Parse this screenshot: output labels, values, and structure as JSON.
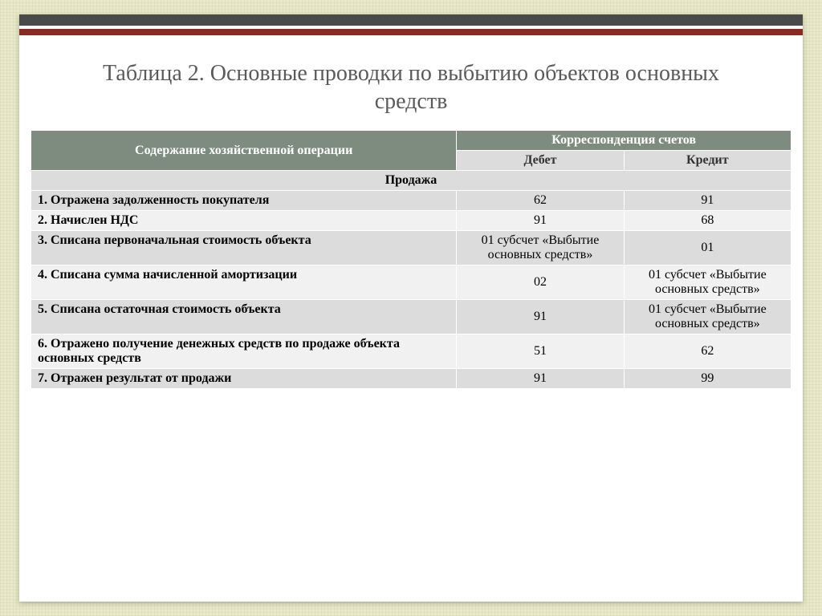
{
  "title": "Таблица 2. Основные проводки по выбытию объектов основных средств",
  "header": {
    "operation": "Содержание хозяйственной операции",
    "corr": "Корреспонденция счетов",
    "debit": "Дебет",
    "credit": "Кредит"
  },
  "section": "Продажа",
  "rows": [
    {
      "desc": "1. Отражена задолженность покупателя",
      "debit": "62",
      "credit": "91"
    },
    {
      "desc": "2. Начислен НДС",
      "debit": "91",
      "credit": "68"
    },
    {
      "desc": "3. Списана первоначальная стоимость объекта",
      "debit": "01 субсчет «Выбытие основных средств»",
      "credit": "01"
    },
    {
      "desc": "4. Списана сумма начисленной амортизации",
      "debit": "02",
      "credit": "01 субсчет «Выбытие основных средств»"
    },
    {
      "desc": "5. Списана остаточная стоимость объекта",
      "debit": "91",
      "credit": "01 субсчет «Выбытие основных средств»"
    },
    {
      "desc": "6. Отражено получение денежных средств по продаже объекта основных средств",
      "debit": "51",
      "credit": "62"
    },
    {
      "desc": "7. Отражен результат от продажи",
      "debit": "91",
      "credit": "99"
    }
  ],
  "style": {
    "page_bg": "#e8e8c8",
    "slide_bg": "#ffffff",
    "topbar1": "#4a4a4a",
    "topbar2": "#8a2a20",
    "header_dark_bg": "#7e8c7f",
    "header_dark_fg": "#ffffff",
    "row_odd_bg": "#dcdcdc",
    "row_even_bg": "#f1f1f1",
    "border_color": "#ffffff",
    "title_color": "#5a5a5a",
    "title_fontsize": 28,
    "body_fontsize": 16,
    "col_widths_pct": [
      56,
      22,
      22
    ]
  }
}
